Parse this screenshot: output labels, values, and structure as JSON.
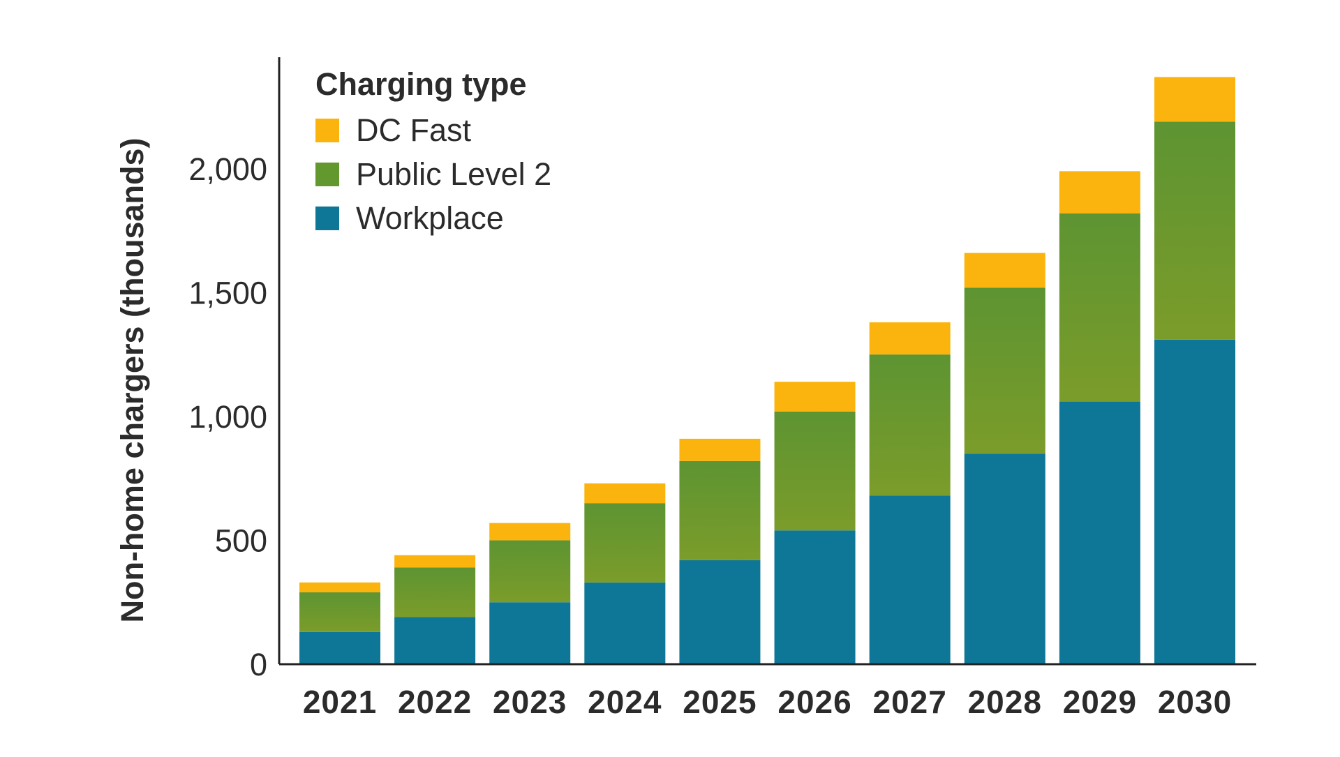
{
  "chart_data": {
    "type": "bar",
    "stacked": true,
    "categories": [
      "2021",
      "2022",
      "2023",
      "2024",
      "2025",
      "2026",
      "2027",
      "2028",
      "2029",
      "2030"
    ],
    "series": [
      {
        "name": "Workplace",
        "values": [
          130,
          190,
          250,
          330,
          420,
          540,
          680,
          850,
          1060,
          1310
        ]
      },
      {
        "name": "Public Level 2",
        "values": [
          160,
          200,
          250,
          320,
          400,
          480,
          570,
          670,
          760,
          880
        ]
      },
      {
        "name": "DC Fast",
        "values": [
          40,
          50,
          70,
          80,
          90,
          120,
          130,
          140,
          170,
          180
        ]
      }
    ],
    "title": "",
    "xlabel": "",
    "ylabel": "Non-home chargers (thousands)",
    "ylim": [
      0,
      2450
    ],
    "yticks": [
      0,
      500,
      1000,
      1500,
      2000
    ],
    "ytick_labels": [
      "0",
      "500",
      "1,000",
      "1,500",
      "2,000"
    ],
    "grid": false,
    "legend": {
      "title": "Charging type",
      "placement": "top-left",
      "entries": [
        "DC Fast",
        "Public Level 2",
        "Workplace"
      ]
    },
    "colors": {
      "Workplace": "#0e7696",
      "Public Level 2": "#62982e",
      "DC Fast": "#fbb40e"
    }
  }
}
